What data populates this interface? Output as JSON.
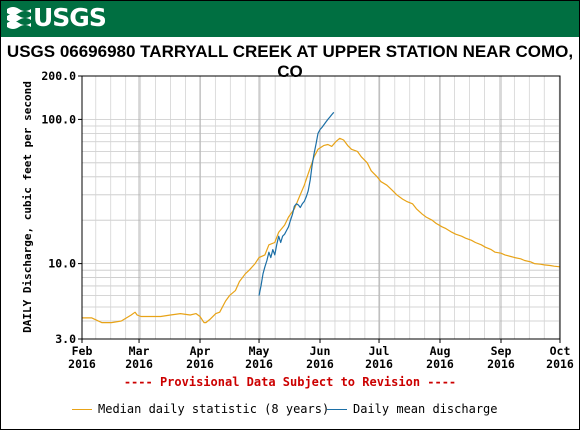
{
  "header": {
    "logo_text": "USGS"
  },
  "chart_data": {
    "type": "line",
    "title": "USGS 06696980 TARRYALL CREEK AT UPPER STATION NEAR COMO, CO",
    "ylabel": "DAILY Discharge, cubic feet per second",
    "xlabel": "",
    "yscale": "log",
    "ylim": [
      3.0,
      200.0
    ],
    "yticks": [
      "200.0",
      "100.0",
      "10.0",
      "3.0"
    ],
    "ytick_values": [
      200,
      100,
      10,
      3
    ],
    "xlim": [
      0,
      243
    ],
    "xtick_days": [
      0,
      29,
      60,
      90,
      121,
      151,
      182,
      213,
      243
    ],
    "xticks": [
      {
        "month": "Feb",
        "year": "2016"
      },
      {
        "month": "Mar",
        "year": "2016"
      },
      {
        "month": "Apr",
        "year": "2016"
      },
      {
        "month": "May",
        "year": "2016"
      },
      {
        "month": "Jun",
        "year": "2016"
      },
      {
        "month": "Jul",
        "year": "2016"
      },
      {
        "month": "Aug",
        "year": "2016"
      },
      {
        "month": "Sep",
        "year": "2016"
      },
      {
        "month": "Oct",
        "year": "2016"
      }
    ],
    "grid": true,
    "legend_position": "bottom",
    "series": [
      {
        "name": "Median daily statistic (8 years)",
        "color": "#e8a317",
        "x": [
          0,
          5,
          10,
          15,
          20,
          25,
          27,
          28,
          30,
          35,
          40,
          45,
          50,
          55,
          58,
          60,
          62,
          63,
          65,
          68,
          70,
          73,
          75,
          78,
          80,
          83,
          85,
          88,
          90,
          93,
          95,
          98,
          100,
          103,
          105,
          108,
          110,
          113,
          115,
          118,
          120,
          123,
          125,
          127,
          129,
          131,
          133,
          135,
          137,
          140,
          142,
          145,
          147,
          150,
          152,
          155,
          158,
          160,
          163,
          165,
          168,
          170,
          173,
          175,
          178,
          180,
          183,
          185,
          188,
          190,
          193,
          195,
          198,
          200,
          203,
          205,
          208,
          210,
          213,
          215,
          218,
          220,
          223,
          225,
          228,
          230,
          233,
          235,
          238,
          240,
          243
        ],
        "values": [
          4.2,
          4.2,
          3.9,
          3.9,
          4.0,
          4.4,
          4.6,
          4.4,
          4.3,
          4.3,
          4.3,
          4.4,
          4.5,
          4.4,
          4.5,
          4.3,
          3.9,
          3.9,
          4.1,
          4.5,
          4.6,
          5.5,
          6.0,
          6.5,
          7.5,
          8.5,
          9.0,
          10.0,
          11.0,
          11.5,
          13.5,
          14.0,
          16.5,
          18.5,
          21.0,
          24.0,
          28.0,
          35.0,
          42.0,
          55.0,
          62.0,
          66.0,
          67.0,
          65.0,
          70.0,
          74.0,
          72.0,
          66.0,
          62.0,
          60.0,
          55.0,
          50.0,
          44.0,
          40.0,
          37.0,
          35.0,
          32.0,
          30.0,
          28.0,
          27.0,
          26.0,
          24.0,
          22.0,
          21.0,
          20.0,
          19.0,
          18.0,
          17.5,
          16.5,
          16.0,
          15.5,
          15.0,
          14.5,
          14.0,
          13.5,
          13.0,
          12.5,
          12.0,
          11.8,
          11.5,
          11.2,
          11.0,
          10.8,
          10.5,
          10.3,
          10.0,
          9.9,
          9.8,
          9.7,
          9.6,
          9.5
        ]
      },
      {
        "name": "Daily mean discharge",
        "color": "#1c6fa6",
        "x": [
          90,
          91,
          92,
          93,
          94,
          95,
          96,
          97,
          98,
          99,
          100,
          101,
          102,
          103,
          104,
          105,
          106,
          107,
          108,
          109,
          110,
          111,
          112,
          113,
          114,
          115,
          116,
          117,
          118,
          119,
          120,
          121,
          122,
          123,
          124,
          125,
          126,
          127,
          128
        ],
        "values": [
          6.0,
          7.0,
          8.5,
          9.5,
          10.5,
          12.0,
          11.0,
          12.5,
          11.5,
          13.5,
          15.5,
          14.0,
          15.5,
          16.0,
          17.0,
          18.0,
          20.0,
          22.0,
          25.0,
          26.0,
          25.5,
          24.5,
          26.0,
          27.0,
          29.0,
          32.0,
          38.0,
          48.0,
          58.0,
          68.0,
          80.0,
          85.0,
          88.0,
          92.0,
          96.0,
          100.0,
          104.0,
          108.0,
          112.0
        ]
      }
    ]
  },
  "provisional_note": "---- Provisional Data Subject to Revision ----",
  "legend": [
    {
      "label": "Median daily statistic (8 years)",
      "color": "#e8a317"
    },
    {
      "label": "Daily mean discharge",
      "color": "#1c6fa6"
    }
  ]
}
